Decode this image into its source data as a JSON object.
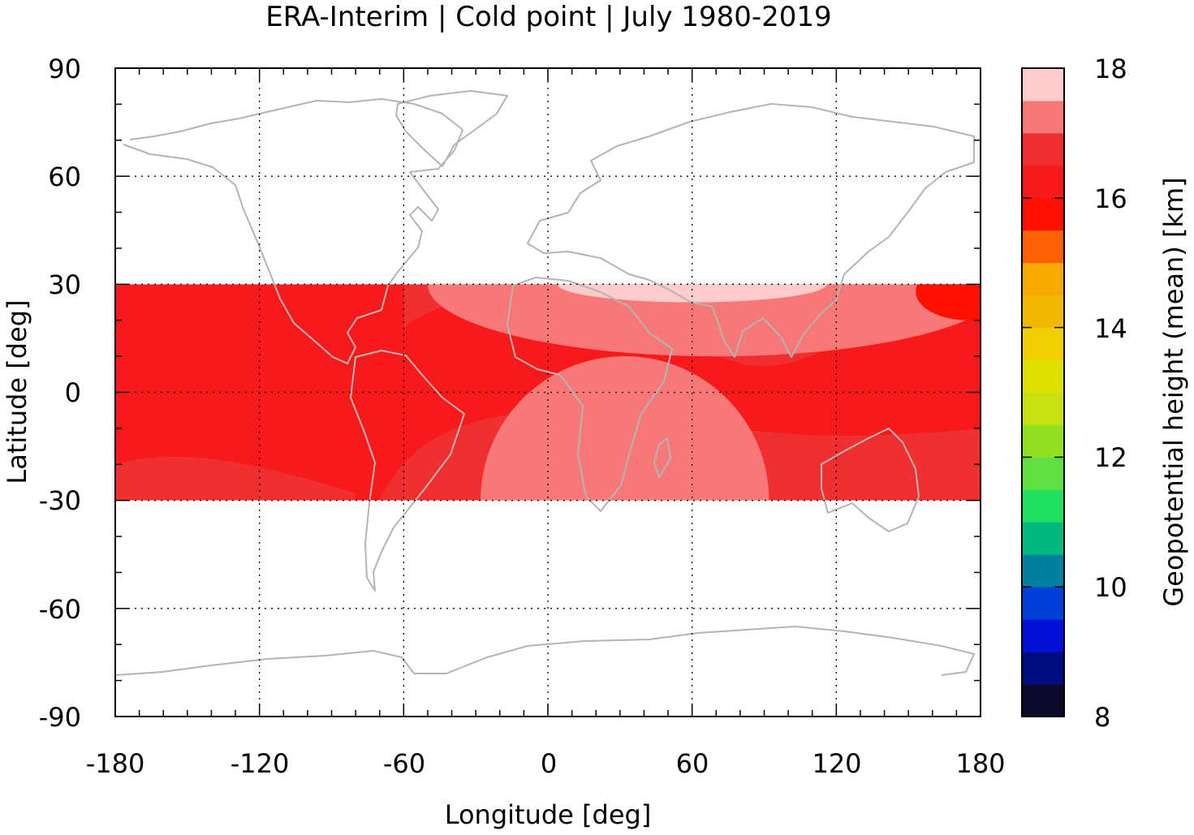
{
  "chart_data": {
    "type": "heatmap",
    "title": "ERA-Interim | Cold point | July 1980-2019",
    "xlabel": "Longitude [deg]",
    "ylabel": "Latitude [deg]",
    "xlim": [
      -180,
      180
    ],
    "ylim": [
      -90,
      90
    ],
    "x_ticks": [
      "-180",
      "-120",
      "-60",
      "0",
      "60",
      "120",
      "180"
    ],
    "y_ticks": [
      "90",
      "60",
      "30",
      "0",
      "-30",
      "-60",
      "-90"
    ],
    "grid": true,
    "data_lat_range": [
      -30,
      30
    ],
    "colorbar": {
      "label": "Geopotential height (mean) [km]",
      "ticks": [
        "18",
        "16",
        "14",
        "12",
        "10",
        "8"
      ],
      "min": 8,
      "max": 18,
      "step": 0.5,
      "colors": [
        "#0a0a2a",
        "#000d80",
        "#0010d8",
        "#0040d8",
        "#0080a0",
        "#00b880",
        "#20e060",
        "#60e040",
        "#90e020",
        "#c8e010",
        "#e0e000",
        "#f0d000",
        "#f0b800",
        "#f8a800",
        "#ff6000",
        "#ff1000",
        "#f81a1a",
        "#f03030",
        "#f87878",
        "#ffcccc"
      ]
    },
    "field_regions": [
      {
        "name": "background",
        "level_km": 16.4,
        "color": "#f81a1a"
      },
      {
        "name": "arabian-tibetan-high-outer",
        "level_km": 16.8,
        "color": "#f03030"
      },
      {
        "name": "arabian-tibetan-high",
        "level_km": 17.2,
        "color": "#f87878"
      },
      {
        "name": "arabian-high-core",
        "level_km": 17.7,
        "color": "#ffcccc"
      },
      {
        "name": "south-atlantic-indian",
        "level_km": 16.8,
        "color": "#f03030"
      },
      {
        "name": "southern-africa-high",
        "level_km": 17.2,
        "color": "#f87878"
      },
      {
        "name": "central-pacific-south",
        "level_km": 16.8,
        "color": "#f03030"
      },
      {
        "name": "west-pacific-north",
        "level_km": 16.0,
        "color": "#ff1000"
      }
    ]
  }
}
